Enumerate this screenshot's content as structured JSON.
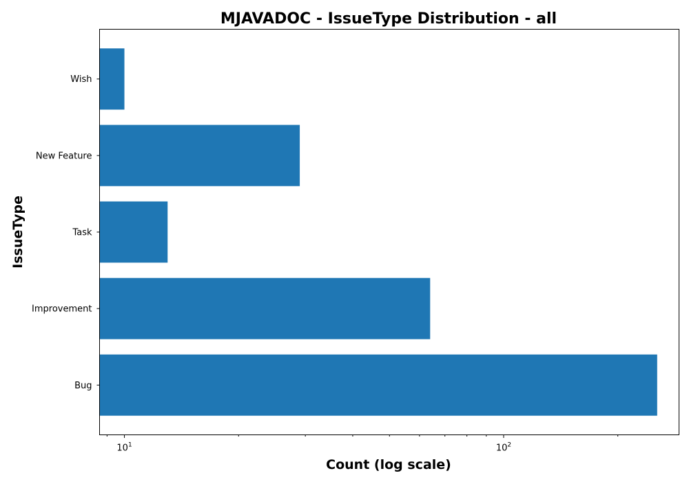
{
  "chart_data": {
    "type": "bar",
    "orientation": "horizontal",
    "title": "MJAVADOC - IssueType Distribution - all",
    "xlabel": "Count (log scale)",
    "ylabel": "IssueType",
    "x_scale": "log",
    "xlim": [
      8.6,
      290
    ],
    "x_tick_labels": [
      {
        "base": "10",
        "exp": "1",
        "value": 10
      },
      {
        "base": "10",
        "exp": "2",
        "value": 100
      }
    ],
    "x_minor_ticks": [
      20,
      30,
      40,
      50,
      60,
      70,
      80,
      90,
      200
    ],
    "categories": [
      "Wish",
      "New Feature",
      "Task",
      "Improvement",
      "Bug"
    ],
    "values": [
      10,
      29,
      13,
      64,
      254
    ],
    "bar_color": "#1f77b4",
    "grid": false
  }
}
